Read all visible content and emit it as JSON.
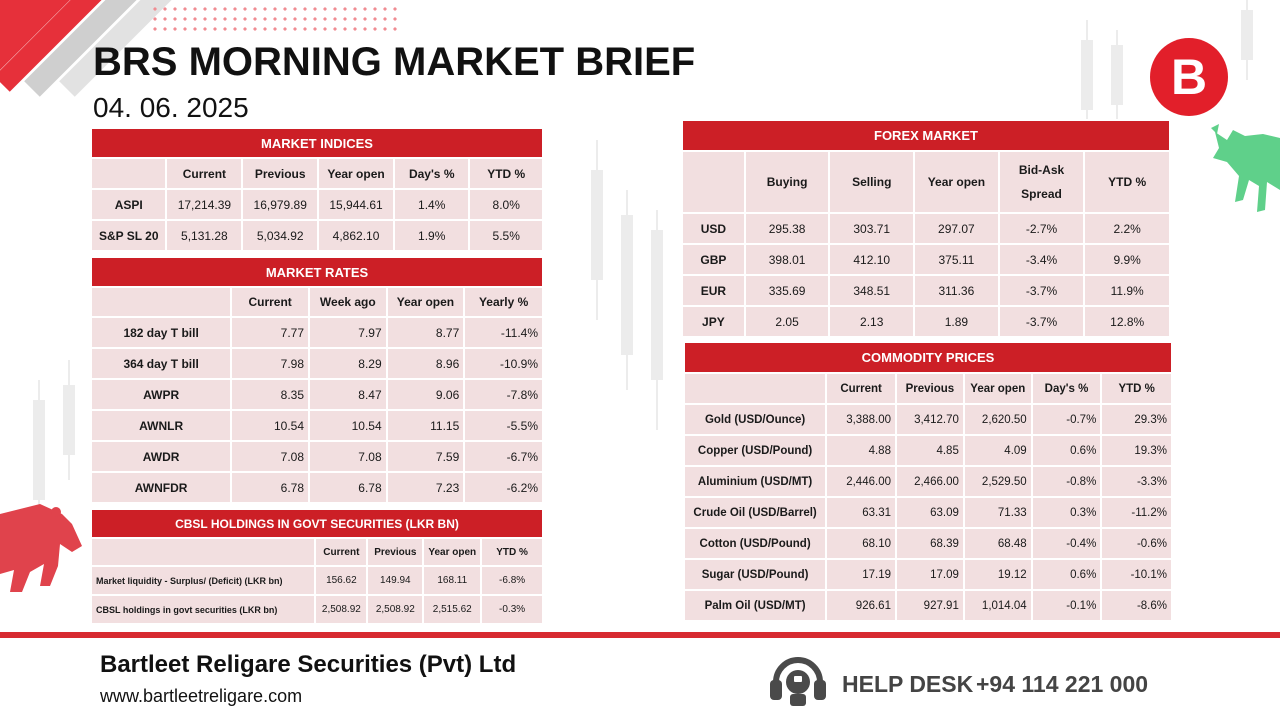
{
  "header": {
    "title": "BRS MORNING MARKET BRIEF",
    "date": "04. 06. 2025",
    "logo_letter": "B"
  },
  "market_indices": {
    "title": "MARKET INDICES",
    "columns": [
      "Current",
      "Previous",
      "Year open",
      "Day's %",
      "YTD %"
    ],
    "rows": [
      {
        "label": "ASPI",
        "values": [
          "17,214.39",
          "16,979.89",
          "15,944.61",
          "1.4%",
          "8.0%"
        ]
      },
      {
        "label": "S&P SL 20",
        "values": [
          "5,131.28",
          "5,034.92",
          "4,862.10",
          "1.9%",
          "5.5%"
        ]
      }
    ]
  },
  "market_rates": {
    "title": "MARKET RATES",
    "columns": [
      "Current",
      "Week ago",
      "Year open",
      "Yearly %"
    ],
    "rows": [
      {
        "label": "182 day T bill",
        "values": [
          "7.77",
          "7.97",
          "8.77",
          "-11.4%"
        ]
      },
      {
        "label": "364 day T bill",
        "values": [
          "7.98",
          "8.29",
          "8.96",
          "-10.9%"
        ]
      },
      {
        "label": "AWPR",
        "values": [
          "8.35",
          "8.47",
          "9.06",
          "-7.8%"
        ]
      },
      {
        "label": "AWNLR",
        "values": [
          "10.54",
          "10.54",
          "11.15",
          "-5.5%"
        ]
      },
      {
        "label": "AWDR",
        "values": [
          "7.08",
          "7.08",
          "7.59",
          "-6.7%"
        ]
      },
      {
        "label": "AWNFDR",
        "values": [
          "6.78",
          "6.78",
          "7.23",
          "-6.2%"
        ]
      }
    ]
  },
  "cbsl_holdings": {
    "title": "CBSL HOLDINGS IN GOVT SECURITIES (LKR BN)",
    "columns": [
      "Current",
      "Previous",
      "Year open",
      "YTD %"
    ],
    "rows": [
      {
        "label": "Market liquidity - Surplus/ (Deficit) (LKR bn)",
        "values": [
          "156.62",
          "149.94",
          "168.11",
          "-6.8%"
        ]
      },
      {
        "label": "CBSL holdings in govt securities (LKR bn)",
        "values": [
          "2,508.92",
          "2,508.92",
          "2,515.62",
          "-0.3%"
        ]
      }
    ]
  },
  "forex_market": {
    "title": "FOREX MARKET",
    "columns": [
      "Buying",
      "Selling",
      "Year open",
      "Bid-Ask Spread",
      "YTD %"
    ],
    "rows": [
      {
        "label": "USD",
        "values": [
          "295.38",
          "303.71",
          "297.07",
          "-2.7%",
          "2.2%"
        ]
      },
      {
        "label": "GBP",
        "values": [
          "398.01",
          "412.10",
          "375.11",
          "-3.4%",
          "9.9%"
        ]
      },
      {
        "label": "EUR",
        "values": [
          "335.69",
          "348.51",
          "311.36",
          "-3.7%",
          "11.9%"
        ]
      },
      {
        "label": "JPY",
        "values": [
          "2.05",
          "2.13",
          "1.89",
          "-3.7%",
          "12.8%"
        ]
      }
    ]
  },
  "commodity_prices": {
    "title": "COMMODITY PRICES",
    "columns": [
      "Current",
      "Previous",
      "Year open",
      "Day's %",
      "YTD %"
    ],
    "rows": [
      {
        "label": "Gold (USD/Ounce)",
        "values": [
          "3,388.00",
          "3,412.70",
          "2,620.50",
          "-0.7%",
          "29.3%"
        ]
      },
      {
        "label": "Copper (USD/Pound)",
        "values": [
          "4.88",
          "4.85",
          "4.09",
          "0.6%",
          "19.3%"
        ]
      },
      {
        "label": "Aluminium (USD/MT)",
        "values": [
          "2,446.00",
          "2,466.00",
          "2,529.50",
          "-0.8%",
          "-3.3%"
        ]
      },
      {
        "label": "Crude Oil (USD/Barrel)",
        "values": [
          "63.31",
          "63.09",
          "71.33",
          "0.3%",
          "-11.2%"
        ]
      },
      {
        "label": "Cotton (USD/Pound)",
        "values": [
          "68.10",
          "68.39",
          "68.48",
          "-0.4%",
          "-0.6%"
        ]
      },
      {
        "label": "Sugar (USD/Pound)",
        "values": [
          "17.19",
          "17.09",
          "19.12",
          "0.6%",
          "-10.1%"
        ]
      },
      {
        "label": "Palm Oil (USD/MT)",
        "values": [
          "926.61",
          "927.91",
          "1,014.04",
          "-0.1%",
          "-8.6%"
        ]
      }
    ]
  },
  "footer": {
    "company": "Bartleet Religare Securities (Pvt) Ltd",
    "website": "www.bartleetreligare.com",
    "help_label": "HELP DESK",
    "help_phone": "+94 114 221 000"
  },
  "colors": {
    "banner": "#cc1f26",
    "cell": "#f2dfe0",
    "accent": "#d72a31"
  },
  "icons": [
    "headset-icon",
    "bull-icon",
    "bear-icon",
    "brs-logo"
  ]
}
